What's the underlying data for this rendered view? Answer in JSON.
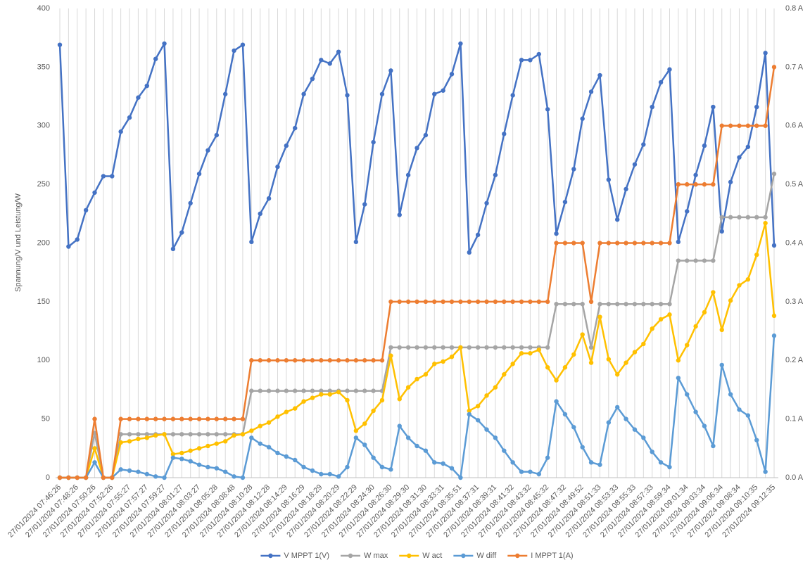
{
  "chart_data": {
    "type": "line",
    "ylabel": "Spannung/V und Leistung/W",
    "categories": [
      "27/01/2024 07:46:26",
      null,
      "27/01/2024 07:48:26",
      null,
      "27/01/2024 07:50:26",
      null,
      "27/01/2024 07:52:26",
      null,
      "27/01/2024 07:55:27",
      null,
      "27/01/2024 07:57:27",
      null,
      "27/01/2024 07:59:27",
      null,
      "27/01/2024 08:01:27",
      null,
      "27/01/2024 08:03:27",
      null,
      "27/01/2024 08:05:28",
      null,
      "27/01/2024 08:08:48",
      null,
      "27/01/2024 08:10:28",
      null,
      "27/01/2024 08:12:28",
      null,
      "27/01/2024 08:14:29",
      null,
      "27/01/2024 08:16:29",
      null,
      "27/01/2024 08:18:29",
      null,
      "27/01/2024 08:20:29",
      null,
      "27/01/2024 08:22:29",
      null,
      "27/01/2024 08:24:30",
      null,
      "27/01/2024 08:26:30",
      null,
      "27/01/2024 08:29:30",
      null,
      "27/01/2024 08:31:30",
      null,
      "27/01/2024 08:33:31",
      null,
      "27/01/2024 08:35:51",
      null,
      "27/01/2024 08:37:31",
      null,
      "27/01/2024 08:39:31",
      null,
      "27/01/2024 08:41:32",
      null,
      "27/01/2024 08:43:32",
      null,
      "27/01/2024 08:45:32",
      null,
      "27/01/2024 08:47:32",
      null,
      "27/01/2024 08:49:52",
      null,
      "27/01/2024 08:51:33",
      null,
      "27/01/2024 08:53:33",
      null,
      "27/01/2024 08:55:33",
      null,
      "27/01/2024 08:57:33",
      null,
      "27/01/2024 08:59:34",
      null,
      "27/01/2024 09:01:34",
      null,
      "27/01/2024 09:03:34",
      null,
      "27/01/2024 09:06:34",
      null,
      "27/01/2024 09:08:34",
      null,
      "27/01/2024 09:10:35",
      null,
      "27/01/2024 09:12:35"
    ],
    "ylim": [
      0,
      400
    ],
    "yticks": [
      0,
      50,
      100,
      150,
      200,
      250,
      300,
      350,
      400
    ],
    "y2lim": [
      0,
      0.8
    ],
    "y2ticks": [
      {
        "value": 0,
        "label": "0.0 A"
      },
      {
        "value": 0.1,
        "label": "0.1 A"
      },
      {
        "value": 0.2,
        "label": "0.2 A"
      },
      {
        "value": 0.3,
        "label": "0.3 A"
      },
      {
        "value": 0.4,
        "label": "0.4 A"
      },
      {
        "value": 0.5,
        "label": "0.5 A"
      },
      {
        "value": 0.6,
        "label": "0.6 A"
      },
      {
        "value": 0.7,
        "label": "0.7 A"
      },
      {
        "value": 0.8,
        "label": "0.8 A"
      }
    ],
    "grid": true,
    "legend": "bottom",
    "series": [
      {
        "name": "V MPPT 1(V)",
        "color": "#4472c4",
        "values": [
          369,
          197,
          203,
          228,
          243,
          257,
          257,
          295,
          307,
          324,
          334,
          357,
          370,
          195,
          209,
          234,
          259,
          279,
          292,
          327,
          364,
          369,
          201,
          225,
          238,
          265,
          283,
          298,
          327,
          340,
          356,
          353,
          363,
          326,
          201,
          233,
          286,
          327,
          347,
          224,
          258,
          281,
          292,
          327,
          330,
          344,
          370,
          192,
          207,
          234,
          258,
          293,
          326,
          356,
          356,
          361,
          314,
          208,
          235,
          263,
          306,
          329,
          343,
          254,
          220,
          246,
          267,
          284,
          316,
          337,
          348,
          201,
          227,
          258,
          283,
          316,
          210,
          252,
          273,
          282,
          316,
          362,
          198
        ]
      },
      {
        "name": "W max",
        "color": "#a5a5a5",
        "values": [
          0,
          0,
          0,
          0,
          38,
          0,
          0,
          37,
          37,
          37,
          37,
          37,
          37,
          37,
          37,
          37,
          37,
          37,
          37,
          37,
          37,
          37,
          74,
          74,
          74,
          74,
          74,
          74,
          74,
          74,
          74,
          74,
          74,
          74,
          74,
          74,
          74,
          74,
          111,
          111,
          111,
          111,
          111,
          111,
          111,
          111,
          111,
          111,
          111,
          111,
          111,
          111,
          111,
          111,
          111,
          111,
          111,
          148,
          148,
          148,
          148,
          111,
          148,
          148,
          148,
          148,
          148,
          148,
          148,
          148,
          148,
          185,
          185,
          185,
          185,
          185,
          222,
          222,
          222,
          222,
          222,
          222,
          259
        ]
      },
      {
        "name": "W act",
        "color": "#ffc000",
        "values": [
          0,
          0,
          0,
          0,
          25,
          0,
          0,
          30,
          31,
          33,
          34,
          36,
          37,
          20,
          21,
          23,
          25,
          27,
          29,
          31,
          36,
          37,
          40,
          44,
          47,
          52,
          56,
          59,
          65,
          68,
          71,
          71,
          73,
          66,
          40,
          46,
          57,
          66,
          104,
          67,
          77,
          84,
          88,
          97,
          99,
          103,
          111,
          57,
          61,
          70,
          77,
          88,
          97,
          106,
          106,
          109,
          94,
          83,
          94,
          105,
          122,
          98,
          137,
          101,
          88,
          98,
          107,
          114,
          127,
          135,
          139,
          100,
          113,
          129,
          141,
          158,
          126,
          151,
          164,
          169,
          190,
          217,
          138
        ]
      },
      {
        "name": "W diff",
        "color": "#5b9bd5",
        "values": [
          0,
          0,
          0,
          0,
          13,
          0,
          0,
          7,
          6,
          5,
          3,
          1,
          0,
          17,
          16,
          14,
          11,
          9,
          8,
          5,
          1,
          0,
          34,
          29,
          26,
          21,
          18,
          15,
          9,
          6,
          3,
          3,
          1,
          9,
          34,
          28,
          17,
          9,
          7,
          44,
          34,
          27,
          23,
          13,
          12,
          8,
          0,
          54,
          49,
          41,
          34,
          23,
          13,
          5,
          5,
          3,
          17,
          65,
          54,
          43,
          26,
          13,
          11,
          47,
          60,
          50,
          41,
          34,
          22,
          13,
          9,
          85,
          71,
          56,
          44,
          27,
          96,
          71,
          58,
          53,
          32,
          5,
          121
        ]
      },
      {
        "name": "I MPPT 1(A)",
        "color": "#ed7d31",
        "axis": "y2",
        "values": [
          0,
          0,
          0,
          0,
          0.1,
          0,
          0,
          0.1,
          0.1,
          0.1,
          0.1,
          0.1,
          0.1,
          0.1,
          0.1,
          0.1,
          0.1,
          0.1,
          0.1,
          0.1,
          0.1,
          0.1,
          0.2,
          0.2,
          0.2,
          0.2,
          0.2,
          0.2,
          0.2,
          0.2,
          0.2,
          0.2,
          0.2,
          0.2,
          0.2,
          0.2,
          0.2,
          0.2,
          0.3,
          0.3,
          0.3,
          0.3,
          0.3,
          0.3,
          0.3,
          0.3,
          0.3,
          0.3,
          0.3,
          0.3,
          0.3,
          0.3,
          0.3,
          0.3,
          0.3,
          0.3,
          0.3,
          0.4,
          0.4,
          0.4,
          0.4,
          0.3,
          0.4,
          0.4,
          0.4,
          0.4,
          0.4,
          0.4,
          0.4,
          0.4,
          0.4,
          0.5,
          0.5,
          0.5,
          0.5,
          0.5,
          0.6,
          0.6,
          0.6,
          0.6,
          0.6,
          0.6,
          0.7
        ]
      }
    ]
  }
}
